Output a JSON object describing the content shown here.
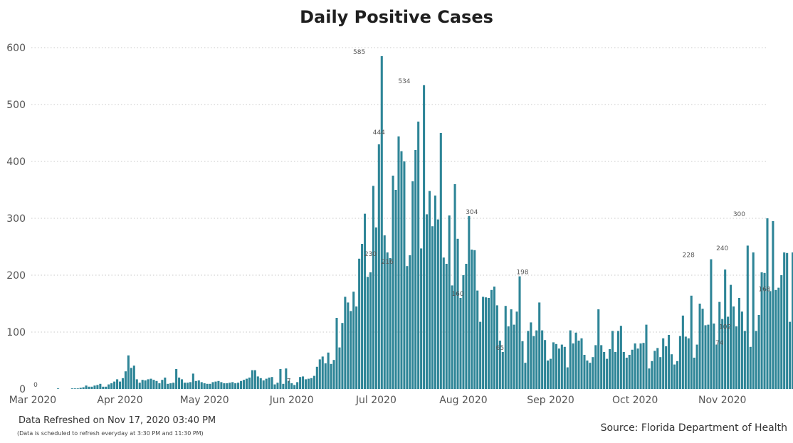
{
  "title": "Daily Positive Cases",
  "refresh_text": "Data Refreshed on Nov 17, 2020 03:40 PM",
  "refresh_note": "(Data is scheduled to refresh everyday at 3:30 PM and 11:30 PM)",
  "source": "Source: Florida Department of Health",
  "colors": {
    "bar": "#2e8597",
    "grid": "#c8c8c8"
  },
  "chart_data": {
    "type": "bar",
    "title": "Daily Positive Cases",
    "x_start": "2020-03-01",
    "x_end": "2020-11-16",
    "ylim": [
      0,
      600
    ],
    "yticks": [
      0,
      100,
      200,
      300,
      400,
      500,
      600
    ],
    "xticks": [
      {
        "date": "2020-03-01",
        "label": "Mar 2020"
      },
      {
        "date": "2020-04-01",
        "label": "Apr 2020"
      },
      {
        "date": "2020-05-01",
        "label": "May 2020"
      },
      {
        "date": "2020-06-01",
        "label": "Jun 2020"
      },
      {
        "date": "2020-07-01",
        "label": "Jul 2020"
      },
      {
        "date": "2020-08-01",
        "label": "Aug 2020"
      },
      {
        "date": "2020-09-01",
        "label": "Sep 2020"
      },
      {
        "date": "2020-10-01",
        "label": "Oct 2020"
      },
      {
        "date": "2020-11-01",
        "label": "Nov 2020"
      }
    ],
    "grid": true,
    "series": [
      {
        "values": [
          0,
          0,
          0,
          0,
          0,
          0,
          0,
          0,
          0,
          1,
          0,
          0,
          0,
          0,
          1,
          1,
          1,
          2,
          3,
          6,
          4,
          4,
          6,
          7,
          9,
          4,
          4,
          8,
          10,
          13,
          17,
          13,
          19,
          31,
          59,
          37,
          41,
          17,
          11,
          16,
          15,
          17,
          18,
          16,
          14,
          10,
          16,
          20,
          9,
          10,
          11,
          35,
          20,
          17,
          11,
          11,
          12,
          27,
          14,
          15,
          12,
          10,
          9,
          9,
          12,
          13,
          14,
          12,
          10,
          10,
          11,
          12,
          10,
          11,
          14,
          16,
          18,
          20,
          33,
          33,
          22,
          19,
          15,
          18,
          20,
          21,
          8,
          11,
          35,
          9,
          36,
          14,
          10,
          7,
          12,
          21,
          22,
          17,
          18,
          19,
          23,
          39,
          52,
          57,
          45,
          64,
          44,
          51,
          125,
          73,
          116,
          162,
          152,
          137,
          171,
          145,
          229,
          255,
          308,
          197,
          205,
          357,
          284,
          430,
          585,
          270,
          240,
          230,
          375,
          350,
          444,
          418,
          400,
          216,
          235,
          365,
          420,
          470,
          247,
          534,
          307,
          348,
          286,
          340,
          298,
          450,
          231,
          220,
          305,
          182,
          360,
          264,
          160,
          200,
          220,
          304,
          245,
          244,
          173,
          118,
          162,
          161,
          160,
          174,
          180,
          147,
          85,
          65,
          146,
          110,
          140,
          113,
          136,
          198,
          84,
          46,
          102,
          117,
          93,
          103,
          152,
          103,
          86,
          50,
          53,
          82,
          79,
          71,
          78,
          74,
          38,
          103,
          80,
          99,
          85,
          89,
          60,
          50,
          46,
          56,
          77,
          140,
          77,
          65,
          53,
          70,
          102,
          65,
          102,
          111,
          65,
          55,
          60,
          69,
          80,
          71,
          80,
          81,
          113,
          36,
          49,
          67,
          72,
          56,
          89,
          75,
          95,
          61,
          43,
          49,
          93,
          129,
          92,
          89,
          164,
          55,
          78,
          150,
          141,
          112,
          113,
          228,
          115,
          78,
          153,
          123,
          210,
          127,
          183,
          145,
          110,
          160,
          136,
          102,
          252,
          74,
          240,
          102,
          130,
          205,
          204,
          300,
          172,
          295,
          174,
          178,
          200,
          240,
          239,
          118,
          240,
          168
        ],
        "color": "#2e8597"
      }
    ],
    "data_labels": [
      {
        "date": "2020-03-02",
        "value": 0,
        "text": "0"
      },
      {
        "date": "2020-05-31",
        "value": 7,
        "text": "7"
      },
      {
        "date": "2020-06-25",
        "value": 585,
        "text": "585"
      },
      {
        "date": "2020-06-29",
        "value": 230,
        "text": "230"
      },
      {
        "date": "2020-07-02",
        "value": 444,
        "text": "444"
      },
      {
        "date": "2020-07-05",
        "value": 216,
        "text": "216"
      },
      {
        "date": "2020-07-11",
        "value": 534,
        "text": "534"
      },
      {
        "date": "2020-07-30",
        "value": 160,
        "text": "160"
      },
      {
        "date": "2020-08-04",
        "value": 304,
        "text": "304"
      },
      {
        "date": "2020-08-14",
        "value": 65,
        "text": "65"
      },
      {
        "date": "2020-08-22",
        "value": 198,
        "text": "198"
      },
      {
        "date": "2020-10-20",
        "value": 228,
        "text": "228"
      },
      {
        "date": "2020-10-31",
        "value": 74,
        "text": "74"
      },
      {
        "date": "2020-11-01",
        "value": 240,
        "text": "240"
      },
      {
        "date": "2020-11-02",
        "value": 102,
        "text": "102"
      },
      {
        "date": "2020-11-07",
        "value": 300,
        "text": "300"
      },
      {
        "date": "2020-11-16",
        "value": 168,
        "text": "168"
      }
    ]
  }
}
